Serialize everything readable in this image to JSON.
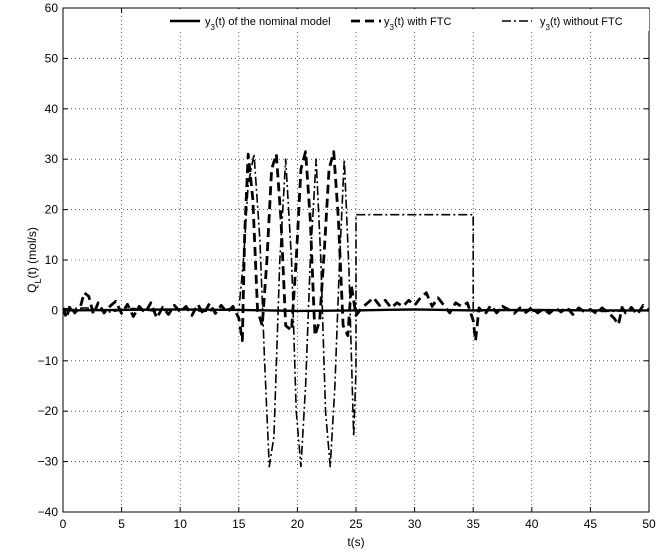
{
  "chart_data": {
    "type": "line",
    "xlabel": "t(s)",
    "ylabel": "Q_L(t) (mol/s)",
    "xlim": [
      0,
      50
    ],
    "ylim": [
      -40,
      60
    ],
    "x_ticks": [
      0,
      5,
      10,
      15,
      20,
      25,
      30,
      35,
      40,
      45,
      50
    ],
    "y_ticks": [
      -40,
      -30,
      -20,
      -10,
      0,
      10,
      20,
      30,
      40,
      50,
      60
    ],
    "grid": true,
    "legend_position": "top",
    "series": [
      {
        "name": "y3(t) of the nominal model",
        "legend": {
          "symbol": "y",
          "sub": "3",
          "rest": "(t) of the nominal model"
        },
        "style": "solid",
        "color": "#000000",
        "points": [
          [
            0,
            0
          ],
          [
            5,
            0.1
          ],
          [
            10,
            0.2
          ],
          [
            15,
            0.1
          ],
          [
            20,
            -0.1
          ],
          [
            25,
            0
          ],
          [
            30,
            0.2
          ],
          [
            35,
            0
          ],
          [
            40,
            0.1
          ],
          [
            45,
            0
          ],
          [
            50,
            0
          ]
        ]
      },
      {
        "name": "y3(t) with FTC",
        "legend": {
          "symbol": "y",
          "sub": "3",
          "rest": "(t) with FTC"
        },
        "style": "dashed",
        "color": "#000000",
        "points": [
          [
            0,
            0.5
          ],
          [
            0.3,
            -1.5
          ],
          [
            0.6,
            1
          ],
          [
            1,
            -0.5
          ],
          [
            1.5,
            0.8
          ],
          [
            1.8,
            3.5
          ],
          [
            2.2,
            2.8
          ],
          [
            2.6,
            -0.8
          ],
          [
            3,
            1.5
          ],
          [
            3.5,
            -0.5
          ],
          [
            4,
            0.8
          ],
          [
            4.5,
            1.8
          ],
          [
            5,
            -0.6
          ],
          [
            5.5,
            1.2
          ],
          [
            6,
            -1.2
          ],
          [
            6.5,
            0.8
          ],
          [
            7,
            -0.5
          ],
          [
            7.5,
            1.5
          ],
          [
            8,
            -1.5
          ],
          [
            8.5,
            0.6
          ],
          [
            9,
            -0.8
          ],
          [
            9.5,
            1
          ],
          [
            10,
            -0.3
          ],
          [
            10.5,
            0.8
          ],
          [
            11,
            -1
          ],
          [
            11.5,
            1.2
          ],
          [
            12,
            -0.8
          ],
          [
            12.5,
            1.4
          ],
          [
            13,
            -0.6
          ],
          [
            13.5,
            1
          ],
          [
            14,
            -0.4
          ],
          [
            14.5,
            0.8
          ],
          [
            15,
            -1.5
          ],
          [
            15.3,
            -6
          ],
          [
            15.5,
            15
          ],
          [
            15.8,
            31
          ],
          [
            16.2,
            22
          ],
          [
            16.6,
            0
          ],
          [
            17,
            -3
          ],
          [
            17.4,
            10
          ],
          [
            17.8,
            28
          ],
          [
            18.2,
            31
          ],
          [
            18.6,
            18
          ],
          [
            19,
            -3
          ],
          [
            19.5,
            -4
          ],
          [
            19.9,
            10
          ],
          [
            20.3,
            28
          ],
          [
            20.7,
            31.5
          ],
          [
            21.1,
            18
          ],
          [
            21.5,
            -5
          ],
          [
            21.9,
            -2
          ],
          [
            22.3,
            12
          ],
          [
            22.7,
            28
          ],
          [
            23.1,
            31.5
          ],
          [
            23.5,
            18
          ],
          [
            23.9,
            -3
          ],
          [
            24.3,
            -5
          ],
          [
            24.6,
            5
          ],
          [
            25,
            -1
          ],
          [
            25.5,
            0.5
          ],
          [
            26,
            1.5
          ],
          [
            26.5,
            2.5
          ],
          [
            27,
            1
          ],
          [
            27.5,
            2
          ],
          [
            28,
            0.5
          ],
          [
            28.5,
            1.5
          ],
          [
            29,
            0.8
          ],
          [
            29.5,
            2
          ],
          [
            30,
            1
          ],
          [
            30.5,
            2.5
          ],
          [
            31,
            3.5
          ],
          [
            31.5,
            0.8
          ],
          [
            32,
            2.5
          ],
          [
            32.5,
            1
          ],
          [
            33,
            -0.5
          ],
          [
            33.5,
            1.5
          ],
          [
            34,
            0.8
          ],
          [
            34.5,
            1.5
          ],
          [
            35,
            -2
          ],
          [
            35.2,
            -6
          ],
          [
            35.5,
            0.5
          ],
          [
            36,
            -0.8
          ],
          [
            36.5,
            1
          ],
          [
            37,
            -0.5
          ],
          [
            37.5,
            0.8
          ],
          [
            38,
            0.2
          ],
          [
            38.5,
            -0.6
          ],
          [
            39,
            0.5
          ],
          [
            39.5,
            -0.4
          ],
          [
            40,
            0.6
          ],
          [
            40.5,
            -0.5
          ],
          [
            41,
            0.3
          ],
          [
            41.5,
            -0.6
          ],
          [
            42,
            0.5
          ],
          [
            42.5,
            -0.3
          ],
          [
            43,
            0.6
          ],
          [
            43.5,
            -0.8
          ],
          [
            44,
            0.5
          ],
          [
            44.5,
            -0.3
          ],
          [
            45,
            0.2
          ],
          [
            45.5,
            -0.6
          ],
          [
            46,
            0.5
          ],
          [
            46.5,
            -0.4
          ],
          [
            47,
            -1.5
          ],
          [
            47.4,
            -2.8
          ],
          [
            47.7,
            0.6
          ],
          [
            48,
            -0.5
          ],
          [
            48.5,
            0.6
          ],
          [
            49,
            -0.8
          ],
          [
            49.5,
            1
          ],
          [
            50,
            0
          ]
        ]
      },
      {
        "name": "y3(t) without FTC",
        "legend": {
          "symbol": "y",
          "sub": "3",
          "rest": "(t) without FTC"
        },
        "style": "dashdot",
        "color": "#000000",
        "points": [
          [
            0,
            0.3
          ],
          [
            2,
            0.5
          ],
          [
            4,
            -0.3
          ],
          [
            6,
            0.4
          ],
          [
            8,
            -0.2
          ],
          [
            10,
            0.3
          ],
          [
            12,
            -0.2
          ],
          [
            14,
            0.3
          ],
          [
            15,
            0
          ],
          [
            15.4,
            10
          ],
          [
            15.8,
            25
          ],
          [
            16.3,
            31
          ],
          [
            16.8,
            14
          ],
          [
            17.2,
            -10
          ],
          [
            17.6,
            -31
          ],
          [
            18,
            -25
          ],
          [
            18.5,
            10
          ],
          [
            19,
            30
          ],
          [
            19.5,
            10
          ],
          [
            19.9,
            -20
          ],
          [
            20.3,
            -31
          ],
          [
            20.7,
            -15
          ],
          [
            21.1,
            10
          ],
          [
            21.6,
            30
          ],
          [
            22,
            10
          ],
          [
            22.4,
            -20
          ],
          [
            22.8,
            -31
          ],
          [
            23.2,
            -15
          ],
          [
            23.6,
            10
          ],
          [
            24,
            30
          ],
          [
            24.4,
            8
          ],
          [
            24.8,
            -25
          ],
          [
            25,
            -12
          ],
          [
            25,
            19
          ],
          [
            35,
            19
          ],
          [
            35,
            0
          ],
          [
            37,
            0.2
          ],
          [
            40,
            -0.2
          ],
          [
            43,
            0.2
          ],
          [
            46,
            -0.2
          ],
          [
            50,
            0
          ]
        ]
      }
    ]
  }
}
